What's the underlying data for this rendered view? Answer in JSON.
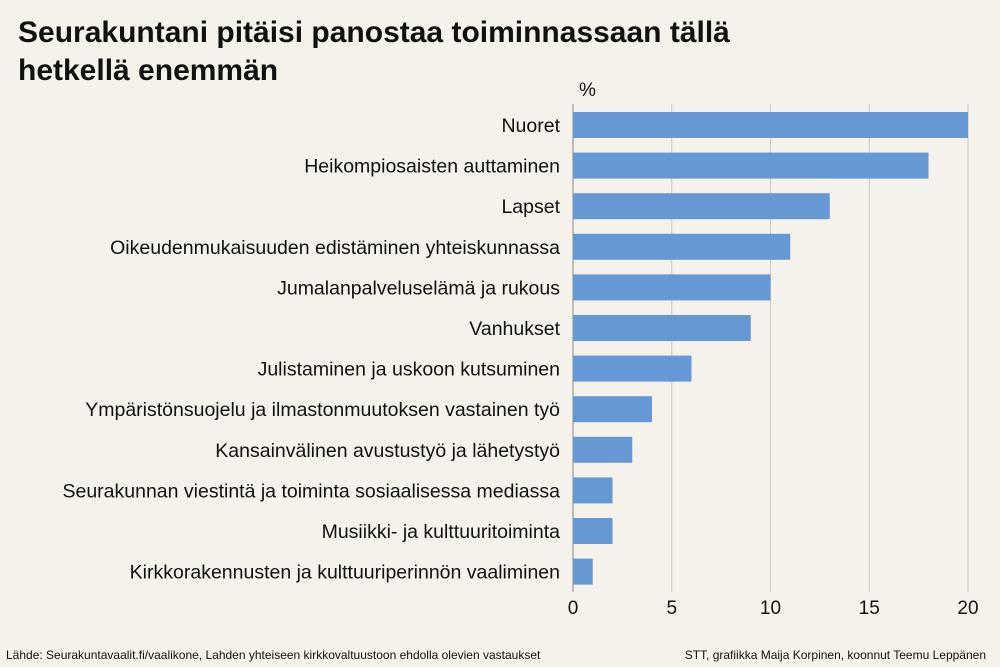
{
  "chart_data": {
    "type": "bar",
    "orientation": "horizontal",
    "title": "Seurakuntani pitäisi panostaa toiminnassaan tällä hetkellä enemmän",
    "unit": "%",
    "categories": [
      "Nuoret",
      "Heikompiosaisten auttaminen",
      "Lapset",
      "Oikeudenmukaisuuden edistäminen yhteiskunnassa",
      "Jumalanpalveluselämä ja rukous",
      "Vanhukset",
      "Julistaminen ja uskoon kutsuminen",
      "Ympäristönsuojelu ja ilmastonmuutoksen vastainen työ",
      "Kansainvälinen avustustyö ja lähetystyö",
      "Seurakunnan viestintä ja toiminta sosiaalisessa mediassa",
      "Musiikki- ja kulttuuritoiminta",
      "Kirkkorakennusten ja kulttuuriperinnön vaaliminen"
    ],
    "values": [
      20,
      18,
      13,
      11,
      10,
      9,
      6,
      4,
      3,
      2,
      2,
      1
    ],
    "xlim": [
      0,
      20
    ],
    "xticks": [
      0,
      5,
      10,
      15,
      20
    ],
    "grid": true,
    "bar_color": "#6699d4",
    "grid_color": "#c8c8c8"
  },
  "footer": {
    "source": "Lähde: Seurakuntavaalit.fi/vaalikone, Lahden yhteiseen kirkkovaltuustoon ehdolla olevien vastaukset",
    "credit": "STT, grafiikka Maija Korpinen, koonnut Teemu Leppänen"
  }
}
